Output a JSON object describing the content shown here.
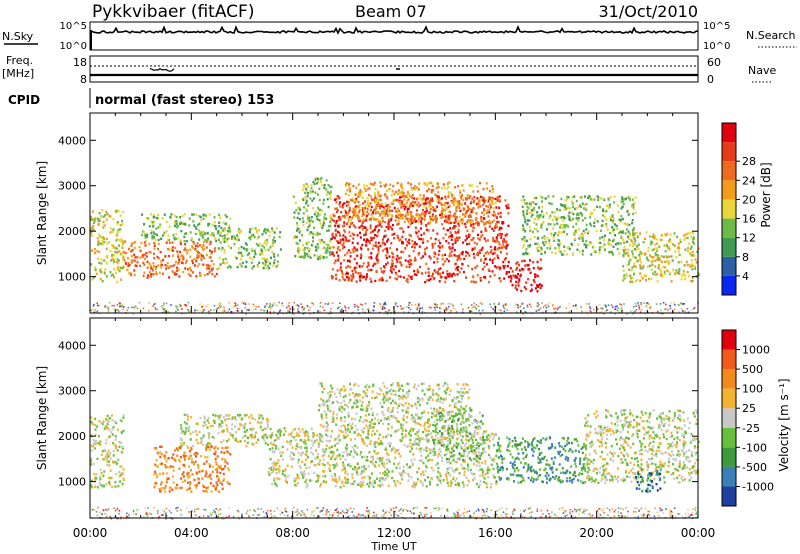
{
  "header": {
    "station": "Pykkvibaer (fitACF)",
    "beam": "Beam 07",
    "date": "31/Oct/2010"
  },
  "status_panel": {
    "nsky_label": "N.Sky",
    "nsky_ticks": [
      "10^5",
      "10^0"
    ],
    "nsearch_label": "N.Search",
    "nsearch_ticks": [
      "10^5",
      "10^0"
    ],
    "freq_label": "Freq.",
    "freq_unit": "[MHz]",
    "freq_ticks": [
      "18",
      "8"
    ],
    "nave_label": "Nave",
    "nave_ticks": [
      "60",
      "0"
    ],
    "cpid_label": "CPID",
    "cpid_value": "normal (fast stereo) 153"
  },
  "chart_data": [
    {
      "type": "heatmap",
      "name": "power",
      "ylabel": "Slant Range [km]",
      "ylim": [
        200,
        4600
      ],
      "yticks": [
        1000,
        2000,
        3000,
        4000
      ],
      "xlim_hours": [
        0,
        24
      ],
      "colorbar": {
        "label": "Power [dB]",
        "ticks": [
          "4",
          "8",
          "12",
          "16",
          "20",
          "24",
          "28"
        ],
        "colors": [
          "#0b26f0",
          "#2c5fa3",
          "#3f9b54",
          "#6dbb46",
          "#e7d53a",
          "#f29c1c",
          "#ef6a1e",
          "#e63a1a",
          "#e0000f"
        ]
      },
      "regions": [
        {
          "t0": 0.0,
          "t1": 1.3,
          "r0": 900,
          "r1": 2500,
          "level": 4
        },
        {
          "t0": 1.3,
          "t1": 5.0,
          "r0": 1000,
          "r1": 1800,
          "level": 6
        },
        {
          "t0": 2.0,
          "t1": 5.5,
          "r0": 1800,
          "r1": 2400,
          "level": 3
        },
        {
          "t0": 5.0,
          "t1": 7.5,
          "r0": 1200,
          "r1": 2100,
          "level": 3
        },
        {
          "t0": 8.0,
          "t1": 9.5,
          "r0": 1400,
          "r1": 3200,
          "level": 3
        },
        {
          "t0": 9.5,
          "t1": 16.5,
          "r0": 900,
          "r1": 2800,
          "level": 7
        },
        {
          "t0": 10.0,
          "t1": 16.0,
          "r0": 2200,
          "r1": 3100,
          "level": 5
        },
        {
          "t0": 16.5,
          "t1": 17.8,
          "r0": 700,
          "r1": 1400,
          "level": 8
        },
        {
          "t0": 17.0,
          "t1": 21.5,
          "r0": 1500,
          "r1": 2800,
          "level": 3
        },
        {
          "t0": 21.0,
          "t1": 24.0,
          "r0": 900,
          "r1": 2000,
          "level": 4
        }
      ]
    },
    {
      "type": "heatmap",
      "name": "velocity",
      "ylabel": "Slant Range [km]",
      "ylim": [
        200,
        4600
      ],
      "yticks": [
        1000,
        2000,
        3000,
        4000
      ],
      "xlim_hours": [
        0,
        24
      ],
      "xticks": [
        "00:00",
        "04:00",
        "08:00",
        "12:00",
        "16:00",
        "20:00",
        "00:00"
      ],
      "xlabel": "Time UT",
      "colorbar": {
        "label": "Velocity [m s⁻¹]",
        "ticks": [
          "1000",
          "500",
          "100",
          "25",
          "-25",
          "-100",
          "-500",
          "-1000"
        ],
        "colors": [
          "#1f3f9e",
          "#3a7fb8",
          "#3e9a3e",
          "#66c03a",
          "#c8c8c8",
          "#f2b430",
          "#f28a1a",
          "#ef5a1a",
          "#e0000f"
        ]
      },
      "regions": [
        {
          "t0": 0.0,
          "t1": 1.3,
          "r0": 900,
          "r1": 2500,
          "level": 4
        },
        {
          "t0": 2.5,
          "t1": 5.5,
          "r0": 800,
          "r1": 1800,
          "level": 6
        },
        {
          "t0": 3.5,
          "t1": 7.0,
          "r0": 1800,
          "r1": 2500,
          "level": 4
        },
        {
          "t0": 7.0,
          "t1": 16.0,
          "r0": 900,
          "r1": 2200,
          "level": 4
        },
        {
          "t0": 9.0,
          "t1": 15.0,
          "r0": 2200,
          "r1": 3200,
          "level": 4
        },
        {
          "t0": 13.5,
          "t1": 15.5,
          "r0": 1500,
          "r1": 2600,
          "level": 3
        },
        {
          "t0": 16.0,
          "t1": 19.5,
          "r0": 1000,
          "r1": 2000,
          "level": 2
        },
        {
          "t0": 19.5,
          "t1": 24.0,
          "r0": 1000,
          "r1": 2600,
          "level": 4
        },
        {
          "t0": 21.5,
          "t1": 22.5,
          "r0": 800,
          "r1": 1300,
          "level": 1
        }
      ]
    }
  ]
}
